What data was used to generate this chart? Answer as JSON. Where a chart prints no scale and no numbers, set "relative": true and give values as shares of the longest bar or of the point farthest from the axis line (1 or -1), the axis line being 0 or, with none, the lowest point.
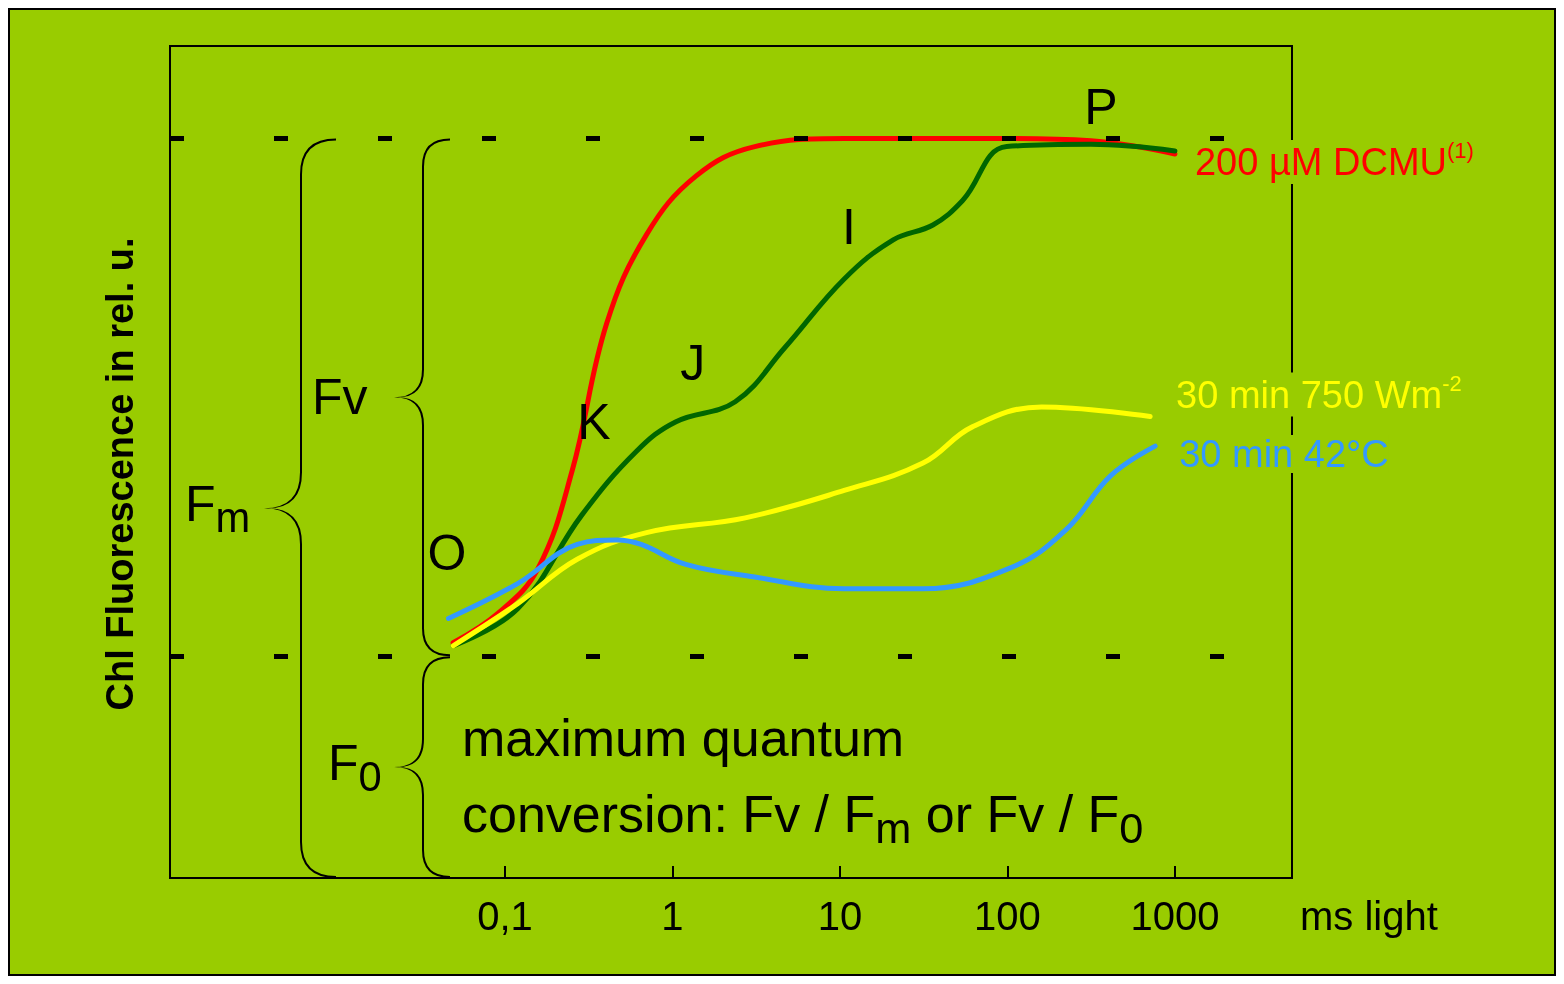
{
  "chart_data": {
    "type": "line",
    "relative": true,
    "ylabel": "Chl Fluorescence in rel. u.",
    "xlabel": "ms light",
    "log": "x",
    "xlim": [
      0.001,
      5000
    ],
    "xticks": [
      {
        "value": 0.1,
        "label": "0,1"
      },
      1,
      10,
      100,
      1000
    ],
    "legend": false,
    "grid": false,
    "marker": "none",
    "line_style": "solid",
    "series": [
      {
        "name": "200 µM DCMU$^{(1)}$",
        "color": "#ff0000",
        "x": [
          0.049,
          0.091,
          0.157,
          0.252,
          0.405,
          0.7,
          1.38,
          3.1,
          10.6,
          81,
          315,
          1000
        ],
        "values": [
          0.318,
          0.358,
          0.418,
          0.551,
          0.75,
          0.87,
          0.949,
          0.989,
          1.0,
          1.0,
          0.997,
          0.979
        ]
      },
      {
        "color": "#006600",
        "x": [
          0.049,
          0.119,
          0.288,
          0.61,
          1.05,
          2.37,
          4.68,
          10.6,
          20.8,
          35.9,
          54,
          99,
          315,
          1000
        ],
        "values": [
          0.314,
          0.364,
          0.491,
          0.577,
          0.617,
          0.644,
          0.717,
          0.81,
          0.863,
          0.883,
          0.916,
          0.989,
          0.992,
          0.983
        ]
      },
      {
        "name": "30 min 750 Wm$^{-2}$",
        "color": "#ffff00",
        "x": [
          0.049,
          0.119,
          0.27,
          0.7,
          2.72,
          10.6,
          31.3,
          61.7,
          160,
          711
        ],
        "values": [
          0.314,
          0.371,
          0.431,
          0.467,
          0.487,
          0.524,
          0.561,
          0.61,
          0.637,
          0.624
        ]
      },
      {
        "name": "30 min 42°C",
        "color": "#3399ff",
        "x": [
          0.046,
          0.119,
          0.27,
          0.465,
          0.65,
          1.2,
          3.1,
          10.6,
          31.3,
          106,
          224,
          414,
          762
        ],
        "values": [
          0.351,
          0.398,
          0.451,
          0.457,
          0.451,
          0.424,
          0.407,
          0.391,
          0.391,
          0.42,
          0.471,
          0.544,
          0.584
        ]
      }
    ],
    "ref_lines": [
      {
        "axis": "y",
        "value": 1.0,
        "line_style": "dashed",
        "color": "#000000"
      },
      {
        "axis": "y",
        "value": 0.3,
        "line_style": "dashed",
        "color": "#000000"
      }
    ],
    "annotations": [
      "F$_{m}$",
      "Fv",
      "F$_{0}$",
      "maximum quantum\nconversion: Fv / F$_{m}$ or Fv / F$_{0}$",
      "O",
      "K",
      "J",
      "I",
      "P"
    ]
  }
}
